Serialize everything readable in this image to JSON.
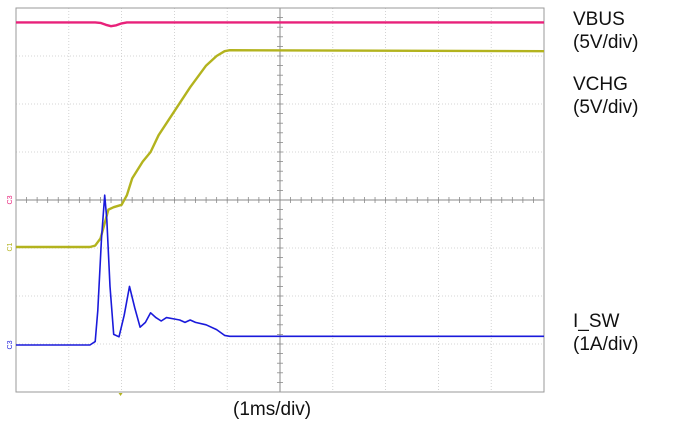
{
  "chart_data": {
    "type": "line",
    "xlabel": "(1ms/div)",
    "grid": true,
    "divisions": {
      "x": 10,
      "y": 8
    },
    "xlim": [
      0,
      10
    ],
    "ylim": [
      0,
      8
    ],
    "series": [
      {
        "name": "VBUS",
        "scale": "(5V/div)",
        "color": "#e8217a",
        "marker": "C3",
        "x": [
          0,
          1.5,
          1.6,
          1.7,
          1.8,
          1.9,
          2.0,
          2.1,
          2.2,
          10
        ],
        "y": [
          7.7,
          7.7,
          7.69,
          7.65,
          7.62,
          7.64,
          7.68,
          7.7,
          7.7,
          7.7
        ]
      },
      {
        "name": "VCHG",
        "scale": "(5V/div)",
        "color": "#b3b31e",
        "marker": "C1",
        "x": [
          0,
          1.4,
          1.5,
          1.6,
          1.7,
          1.75,
          1.85,
          2.0,
          2.1,
          2.2,
          2.4,
          2.55,
          2.7,
          3.0,
          3.3,
          3.6,
          3.8,
          3.95,
          4.05,
          10
        ],
        "y": [
          3.02,
          3.02,
          3.05,
          3.2,
          3.6,
          3.8,
          3.85,
          3.9,
          4.1,
          4.45,
          4.8,
          5.0,
          5.35,
          5.85,
          6.35,
          6.8,
          7.0,
          7.1,
          7.12,
          7.1
        ]
      },
      {
        "name": "I_SW",
        "scale": "(1A/div)",
        "color": "#1a1adb",
        "marker": "C3",
        "x": [
          0,
          1.4,
          1.5,
          1.55,
          1.62,
          1.68,
          1.72,
          1.78,
          1.85,
          1.95,
          2.05,
          2.15,
          2.25,
          2.35,
          2.45,
          2.55,
          2.65,
          2.75,
          2.85,
          3.0,
          3.1,
          3.2,
          3.3,
          3.4,
          3.6,
          3.8,
          3.95,
          4.05,
          10
        ],
        "y": [
          0.98,
          0.98,
          1.05,
          1.7,
          3.2,
          4.1,
          3.6,
          2.2,
          1.2,
          1.15,
          1.6,
          2.2,
          1.75,
          1.35,
          1.45,
          1.65,
          1.55,
          1.48,
          1.55,
          1.52,
          1.5,
          1.45,
          1.5,
          1.45,
          1.4,
          1.3,
          1.18,
          1.16,
          1.16
        ]
      }
    ]
  }
}
